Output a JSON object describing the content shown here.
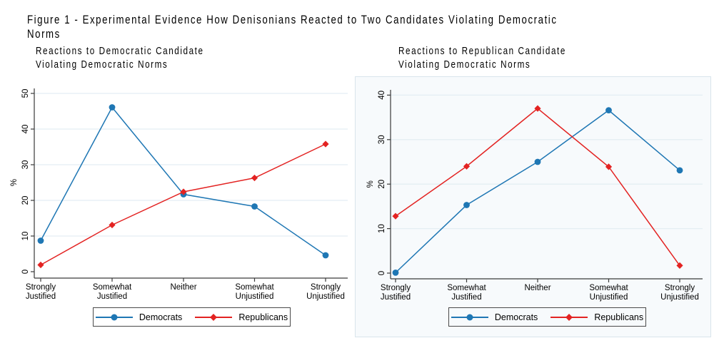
{
  "title": "Figure 1 - Experimental Evidence How Denisonians Reacted to Two Candidates Violating Democratic Norms",
  "colors": {
    "democrats": "#1f77b4",
    "republicans": "#e32322",
    "grid": "#e4eef3",
    "axis": "#3a3a3a",
    "text": "#000000",
    "right_panel_bg": "#f7fafc",
    "right_panel_border": "#d9e5ec"
  },
  "chart_data": [
    {
      "type": "line",
      "title": "Reactions to Democratic Candidate\nViolating Democratic Norms",
      "xlabel": "",
      "ylabel": "%",
      "ylim": [
        0,
        50
      ],
      "yticks": [
        0,
        10,
        20,
        30,
        40,
        50
      ],
      "grid": true,
      "legend_position": "bottom",
      "categories": [
        "Strongly\nJustified",
        "Somewhat\nJustified",
        "Neither",
        "Somewhat\nUnjustified",
        "Strongly\nUnjustified"
      ],
      "series": [
        {
          "name": "Democrats",
          "marker": "circle",
          "color_key": "democrats",
          "values": [
            8.7,
            46.1,
            21.7,
            18.3,
            4.6
          ]
        },
        {
          "name": "Republicans",
          "marker": "diamond",
          "color_key": "republicans",
          "values": [
            1.9,
            13.1,
            22.4,
            26.3,
            35.8
          ]
        }
      ]
    },
    {
      "type": "line",
      "title": "Reactions to Republican Candidate\nViolating Democratic Norms",
      "xlabel": "",
      "ylabel": "%",
      "ylim": [
        0,
        40
      ],
      "yticks": [
        0,
        10,
        20,
        30,
        40
      ],
      "grid": true,
      "legend_position": "bottom",
      "categories": [
        "Strongly\nJustified",
        "Somewhat\nJustified",
        "Neither",
        "Somewhat\nUnjustified",
        "Strongly\nUnjustified"
      ],
      "series": [
        {
          "name": "Democrats",
          "marker": "circle",
          "color_key": "democrats",
          "values": [
            0.1,
            15.3,
            25.0,
            36.6,
            23.1
          ]
        },
        {
          "name": "Republicans",
          "marker": "diamond",
          "color_key": "republicans",
          "values": [
            12.8,
            24.0,
            37.0,
            23.9,
            1.7
          ]
        }
      ]
    }
  ]
}
